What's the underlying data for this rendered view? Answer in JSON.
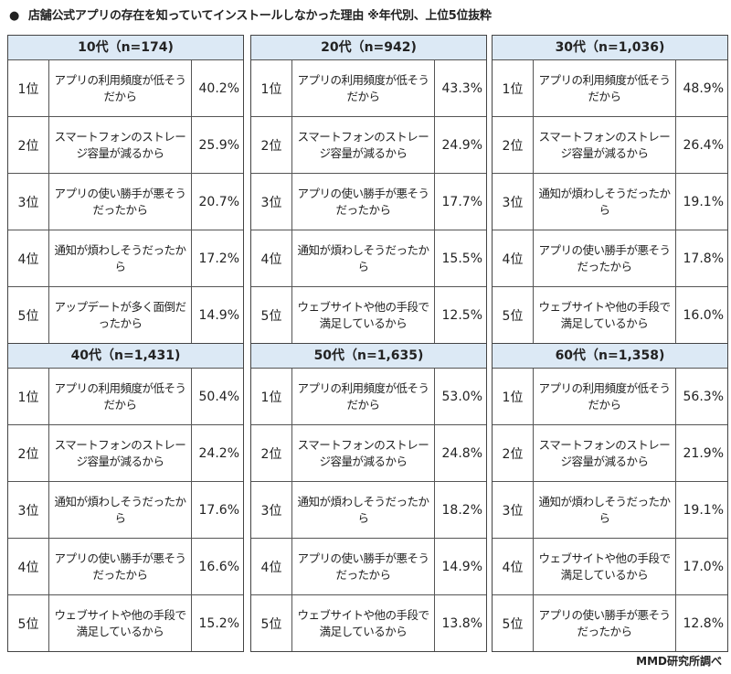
{
  "title": "店舗公式アプリの存在を知っていてインストールしなかった理由 ※年代別、上位5位抜粋",
  "bullet": "●",
  "header_color": "#dce9f5",
  "panels": [
    {
      "header": "10代（n=174)",
      "rows": [
        {
          "rank": "1位",
          "reason": "アプリの利用頻度が低そうだから",
          "pct": "40.2%"
        },
        {
          "rank": "2位",
          "reason": "スマートフォンのストレージ容量が減るから",
          "pct": "25.9%"
        },
        {
          "rank": "3位",
          "reason": "アプリの使い勝手が悪そうだったから",
          "pct": "20.7%"
        },
        {
          "rank": "4位",
          "reason": "通知が煩わしそうだったから",
          "pct": "17.2%"
        },
        {
          "rank": "5位",
          "reason": "アップデートが多く面倒だったから",
          "pct": "14.9%"
        }
      ]
    },
    {
      "header": "20代（n=942)",
      "rows": [
        {
          "rank": "1位",
          "reason": "アプリの利用頻度が低そうだから",
          "pct": "43.3%"
        },
        {
          "rank": "2位",
          "reason": "スマートフォンのストレージ容量が減るから",
          "pct": "24.9%"
        },
        {
          "rank": "3位",
          "reason": "アプリの使い勝手が悪そうだったから",
          "pct": "17.7%"
        },
        {
          "rank": "4位",
          "reason": "通知が煩わしそうだったから",
          "pct": "15.5%"
        },
        {
          "rank": "5位",
          "reason": "ウェブサイトや他の手段で満足しているから",
          "pct": "12.5%"
        }
      ]
    },
    {
      "header": "30代（n=1,036)",
      "rows": [
        {
          "rank": "1位",
          "reason": "アプリの利用頻度が低そうだから",
          "pct": "48.9%"
        },
        {
          "rank": "2位",
          "reason": "スマートフォンのストレージ容量が減るから",
          "pct": "26.4%"
        },
        {
          "rank": "3位",
          "reason": "通知が煩わしそうだったから",
          "pct": "19.1%"
        },
        {
          "rank": "4位",
          "reason": "アプリの使い勝手が悪そうだったから",
          "pct": "17.8%"
        },
        {
          "rank": "5位",
          "reason": "ウェブサイトや他の手段で満足しているから",
          "pct": "16.0%"
        }
      ]
    },
    {
      "header": "40代（n=1,431)",
      "rows": [
        {
          "rank": "1位",
          "reason": "アプリの利用頻度が低そうだから",
          "pct": "50.4%"
        },
        {
          "rank": "2位",
          "reason": "スマートフォンのストレージ容量が減るから",
          "pct": "24.2%"
        },
        {
          "rank": "3位",
          "reason": "通知が煩わしそうだったから",
          "pct": "17.6%"
        },
        {
          "rank": "4位",
          "reason": "アプリの使い勝手が悪そうだったから",
          "pct": "16.6%"
        },
        {
          "rank": "5位",
          "reason": "ウェブサイトや他の手段で満足しているから",
          "pct": "15.2%"
        }
      ]
    },
    {
      "header": "50代（n=1,635)",
      "rows": [
        {
          "rank": "1位",
          "reason": "アプリの利用頻度が低そうだから",
          "pct": "53.0%"
        },
        {
          "rank": "2位",
          "reason": "スマートフォンのストレージ容量が減るから",
          "pct": "24.8%"
        },
        {
          "rank": "3位",
          "reason": "通知が煩わしそうだったから",
          "pct": "18.2%"
        },
        {
          "rank": "4位",
          "reason": "アプリの使い勝手が悪そうだったから",
          "pct": "14.9%"
        },
        {
          "rank": "5位",
          "reason": "ウェブサイトや他の手段で満足しているから",
          "pct": "13.8%"
        }
      ]
    },
    {
      "header": "60代（n=1,358)",
      "rows": [
        {
          "rank": "1位",
          "reason": "アプリの利用頻度が低そうだから",
          "pct": "56.3%"
        },
        {
          "rank": "2位",
          "reason": "スマートフォンのストレージ容量が減るから",
          "pct": "21.9%"
        },
        {
          "rank": "3位",
          "reason": "通知が煩わしそうだったから",
          "pct": "19.1%"
        },
        {
          "rank": "4位",
          "reason": "ウェブサイトや他の手段で満足しているから",
          "pct": "17.0%"
        },
        {
          "rank": "5位",
          "reason": "アプリの使い勝手が悪そうだったから",
          "pct": "12.8%"
        }
      ]
    }
  ],
  "footer": "MMD研究所調べ"
}
